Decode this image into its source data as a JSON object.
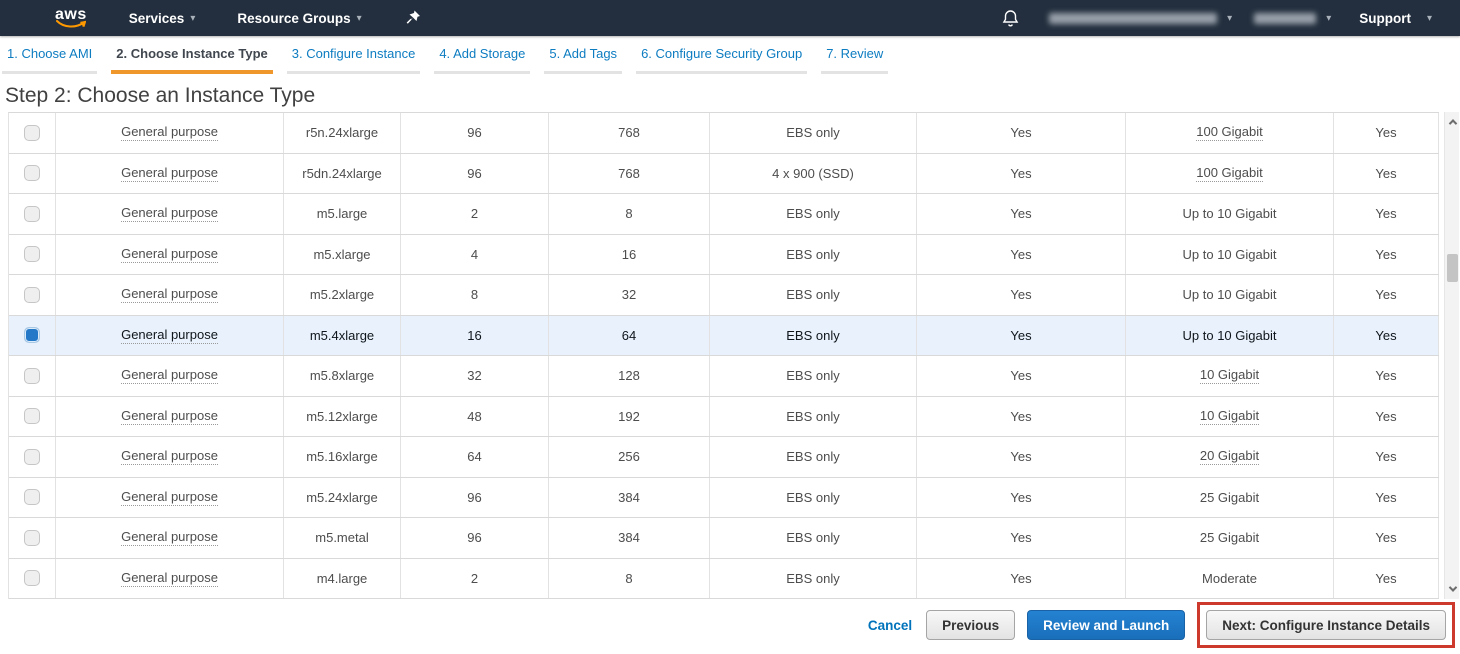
{
  "nav": {
    "logo_text": "aws",
    "services_label": "Services",
    "resource_groups_label": "Resource Groups",
    "support_label": "Support",
    "caret_glyph": "▾",
    "account_redacted": true,
    "region_redacted": true
  },
  "wizard_tabs": [
    {
      "label": "1. Choose AMI",
      "active": false
    },
    {
      "label": "2. Choose Instance Type",
      "active": true
    },
    {
      "label": "3. Configure Instance",
      "active": false
    },
    {
      "label": "4. Add Storage",
      "active": false
    },
    {
      "label": "5. Add Tags",
      "active": false
    },
    {
      "label": "6. Configure Security Group",
      "active": false
    },
    {
      "label": "7. Review",
      "active": false
    }
  ],
  "page_title": "Step 2: Choose an Instance Type",
  "table": {
    "rows": [
      {
        "family": "General purpose",
        "type": "r5n.24xlarge",
        "vcpus": "96",
        "memory": "768",
        "storage": "EBS only",
        "ebs_optimized": "Yes",
        "network": "100 Gigabit",
        "network_tooltip": true,
        "ipv6": "Yes",
        "selected": false
      },
      {
        "family": "General purpose",
        "type": "r5dn.24xlarge",
        "vcpus": "96",
        "memory": "768",
        "storage": "4 x 900 (SSD)",
        "ebs_optimized": "Yes",
        "network": "100 Gigabit",
        "network_tooltip": true,
        "ipv6": "Yes",
        "selected": false
      },
      {
        "family": "General purpose",
        "type": "m5.large",
        "vcpus": "2",
        "memory": "8",
        "storage": "EBS only",
        "ebs_optimized": "Yes",
        "network": "Up to 10 Gigabit",
        "network_tooltip": false,
        "ipv6": "Yes",
        "selected": false
      },
      {
        "family": "General purpose",
        "type": "m5.xlarge",
        "vcpus": "4",
        "memory": "16",
        "storage": "EBS only",
        "ebs_optimized": "Yes",
        "network": "Up to 10 Gigabit",
        "network_tooltip": false,
        "ipv6": "Yes",
        "selected": false
      },
      {
        "family": "General purpose",
        "type": "m5.2xlarge",
        "vcpus": "8",
        "memory": "32",
        "storage": "EBS only",
        "ebs_optimized": "Yes",
        "network": "Up to 10 Gigabit",
        "network_tooltip": false,
        "ipv6": "Yes",
        "selected": false
      },
      {
        "family": "General purpose",
        "type": "m5.4xlarge",
        "vcpus": "16",
        "memory": "64",
        "storage": "EBS only",
        "ebs_optimized": "Yes",
        "network": "Up to 10 Gigabit",
        "network_tooltip": false,
        "ipv6": "Yes",
        "selected": true
      },
      {
        "family": "General purpose",
        "type": "m5.8xlarge",
        "vcpus": "32",
        "memory": "128",
        "storage": "EBS only",
        "ebs_optimized": "Yes",
        "network": "10 Gigabit",
        "network_tooltip": true,
        "ipv6": "Yes",
        "selected": false
      },
      {
        "family": "General purpose",
        "type": "m5.12xlarge",
        "vcpus": "48",
        "memory": "192",
        "storage": "EBS only",
        "ebs_optimized": "Yes",
        "network": "10 Gigabit",
        "network_tooltip": true,
        "ipv6": "Yes",
        "selected": false
      },
      {
        "family": "General purpose",
        "type": "m5.16xlarge",
        "vcpus": "64",
        "memory": "256",
        "storage": "EBS only",
        "ebs_optimized": "Yes",
        "network": "20 Gigabit",
        "network_tooltip": true,
        "ipv6": "Yes",
        "selected": false
      },
      {
        "family": "General purpose",
        "type": "m5.24xlarge",
        "vcpus": "96",
        "memory": "384",
        "storage": "EBS only",
        "ebs_optimized": "Yes",
        "network": "25 Gigabit",
        "network_tooltip": false,
        "ipv6": "Yes",
        "selected": false
      },
      {
        "family": "General purpose",
        "type": "m5.metal",
        "vcpus": "96",
        "memory": "384",
        "storage": "EBS only",
        "ebs_optimized": "Yes",
        "network": "25 Gigabit",
        "network_tooltip": false,
        "ipv6": "Yes",
        "selected": false
      },
      {
        "family": "General purpose",
        "type": "m4.large",
        "vcpus": "2",
        "memory": "8",
        "storage": "EBS only",
        "ebs_optimized": "Yes",
        "network": "Moderate",
        "network_tooltip": false,
        "ipv6": "Yes",
        "selected": false
      }
    ]
  },
  "footer": {
    "cancel_label": "Cancel",
    "previous_label": "Previous",
    "review_launch_label": "Review and Launch",
    "next_label": "Next: Configure Instance Details"
  },
  "colors": {
    "navbar_bg": "#232f3e",
    "logo_smile_orange": "#ff9900",
    "tab_active_underline": "#f0972c",
    "tab_link_blue": "#0d7cc1",
    "link_blue": "#0073bb",
    "primary_button_blue": "#1f78c8",
    "selected_row_bg": "#e9f2fc",
    "checkbox_selected_blue": "#2478c8",
    "annotation_red": "#cd3a2d"
  },
  "icons": {
    "pushpin": "pushpin-icon",
    "bell": "bell-icon",
    "caret_down": "caret-down-icon",
    "scroll_up": "scroll-up-arrow-icon",
    "scroll_down": "scroll-down-arrow-icon"
  }
}
